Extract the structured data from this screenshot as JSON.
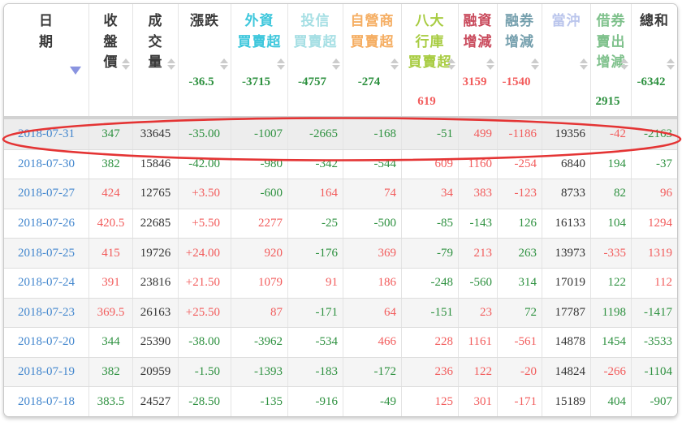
{
  "colors": {
    "red": "#f25c5c",
    "green": "#2e9140",
    "black": "#333333",
    "date_link": "#4387ce",
    "active_sort_arrow": "#8a94e0",
    "inactive_sort_arrow": "#cccccc",
    "annotation": "#e43434"
  },
  "annotation": {
    "type": "ellipse",
    "target_row": "2018-07-31"
  },
  "table": {
    "columns": [
      {
        "id": "date",
        "label_lines": [
          "日",
          "期"
        ],
        "label_color": "#3a3a3a",
        "sort": "active-desc",
        "summary": null
      },
      {
        "id": "close",
        "label_lines": [
          "收",
          "盤",
          "價"
        ],
        "label_color": "#3a3a3a",
        "sort": "neutral",
        "summary": null
      },
      {
        "id": "volume",
        "label_lines": [
          "成",
          "交",
          "量"
        ],
        "label_color": "#3a3a3a",
        "sort": "neutral",
        "summary": null
      },
      {
        "id": "change",
        "label_lines": [
          "漲跌"
        ],
        "label_color": "#3a3a3a",
        "sort": "neutral",
        "summary": {
          "value": "-36.5",
          "color": "green"
        }
      },
      {
        "id": "foreign",
        "label_lines": [
          "外資",
          "買賣超"
        ],
        "label_color": "#3ec7dc",
        "sort": "neutral",
        "summary": {
          "value": "-3715",
          "color": "green"
        }
      },
      {
        "id": "trust",
        "label_lines": [
          "投信",
          "買賣超"
        ],
        "label_color": "#a6dfe4",
        "sort": "neutral",
        "summary": {
          "value": "-4757",
          "color": "green"
        }
      },
      {
        "id": "dealer",
        "label_lines": [
          "自營商",
          "買賣超"
        ],
        "label_color": "#f5ae63",
        "sort": "neutral",
        "summary": {
          "value": "-274",
          "color": "green"
        }
      },
      {
        "id": "banks",
        "label_lines": [
          "八大",
          "行庫",
          "買賣超"
        ],
        "label_color": "#a8cc42",
        "sort": "neutral",
        "summary": {
          "value": "619",
          "color": "red"
        }
      },
      {
        "id": "margin",
        "label_lines": [
          "融資",
          "增減"
        ],
        "label_color": "#c94a5c",
        "sort": "neutral",
        "summary": {
          "value": "3159",
          "color": "red"
        }
      },
      {
        "id": "short",
        "label_lines": [
          "融券",
          "增減"
        ],
        "label_color": "#76a0ae",
        "sort": "neutral",
        "summary": {
          "value": "-1540",
          "color": "red"
        }
      },
      {
        "id": "daytrade",
        "label_lines": [
          "當沖"
        ],
        "label_color": "#bac5ec",
        "sort": "neutral",
        "summary": null
      },
      {
        "id": "seclend",
        "label_lines": [
          "借券",
          "賣出",
          "增減"
        ],
        "label_color": "#7fc18c",
        "sort": "neutral",
        "summary": {
          "value": "2915",
          "color": "green"
        }
      },
      {
        "id": "total",
        "label_lines": [
          "總和"
        ],
        "label_color": "#3a3a3a",
        "sort": "neutral",
        "summary": {
          "value": "-6342",
          "color": "green"
        }
      }
    ],
    "rows": [
      {
        "date": "2018-07-31",
        "highlighted": true,
        "cells": [
          {
            "v": "347",
            "c": "green"
          },
          {
            "v": "33645",
            "c": "black"
          },
          {
            "v": "-35.00",
            "c": "green"
          },
          {
            "v": "-1007",
            "c": "green"
          },
          {
            "v": "-2665",
            "c": "green"
          },
          {
            "v": "-168",
            "c": "green"
          },
          {
            "v": "-51",
            "c": "green"
          },
          {
            "v": "499",
            "c": "red"
          },
          {
            "v": "-1186",
            "c": "red"
          },
          {
            "v": "19356",
            "c": "black"
          },
          {
            "v": "-42",
            "c": "red"
          },
          {
            "v": "-2163",
            "c": "green"
          }
        ]
      },
      {
        "date": "2018-07-30",
        "highlighted": false,
        "cells": [
          {
            "v": "382",
            "c": "green"
          },
          {
            "v": "15846",
            "c": "black"
          },
          {
            "v": "-42.00",
            "c": "green"
          },
          {
            "v": "-980",
            "c": "green"
          },
          {
            "v": "-342",
            "c": "green"
          },
          {
            "v": "-544",
            "c": "green"
          },
          {
            "v": "609",
            "c": "red"
          },
          {
            "v": "1160",
            "c": "red"
          },
          {
            "v": "-254",
            "c": "red"
          },
          {
            "v": "6840",
            "c": "black"
          },
          {
            "v": "194",
            "c": "green"
          },
          {
            "v": "-37",
            "c": "green"
          }
        ]
      },
      {
        "date": "2018-07-27",
        "highlighted": false,
        "cells": [
          {
            "v": "424",
            "c": "red"
          },
          {
            "v": "12765",
            "c": "black"
          },
          {
            "v": "+3.50",
            "c": "red"
          },
          {
            "v": "-600",
            "c": "green"
          },
          {
            "v": "164",
            "c": "red"
          },
          {
            "v": "74",
            "c": "red"
          },
          {
            "v": "34",
            "c": "red"
          },
          {
            "v": "383",
            "c": "red"
          },
          {
            "v": "-123",
            "c": "red"
          },
          {
            "v": "8733",
            "c": "black"
          },
          {
            "v": "82",
            "c": "green"
          },
          {
            "v": "96",
            "c": "red"
          }
        ]
      },
      {
        "date": "2018-07-26",
        "highlighted": false,
        "cells": [
          {
            "v": "420.5",
            "c": "red"
          },
          {
            "v": "22685",
            "c": "black"
          },
          {
            "v": "+5.50",
            "c": "red"
          },
          {
            "v": "2277",
            "c": "red"
          },
          {
            "v": "-25",
            "c": "green"
          },
          {
            "v": "-500",
            "c": "green"
          },
          {
            "v": "-85",
            "c": "green"
          },
          {
            "v": "-143",
            "c": "green"
          },
          {
            "v": "126",
            "c": "green"
          },
          {
            "v": "16133",
            "c": "black"
          },
          {
            "v": "104",
            "c": "green"
          },
          {
            "v": "1294",
            "c": "red"
          }
        ]
      },
      {
        "date": "2018-07-25",
        "highlighted": false,
        "cells": [
          {
            "v": "415",
            "c": "red"
          },
          {
            "v": "19726",
            "c": "black"
          },
          {
            "v": "+24.00",
            "c": "red"
          },
          {
            "v": "920",
            "c": "red"
          },
          {
            "v": "-176",
            "c": "green"
          },
          {
            "v": "369",
            "c": "red"
          },
          {
            "v": "-79",
            "c": "green"
          },
          {
            "v": "213",
            "c": "red"
          },
          {
            "v": "263",
            "c": "green"
          },
          {
            "v": "13973",
            "c": "black"
          },
          {
            "v": "-335",
            "c": "red"
          },
          {
            "v": "1319",
            "c": "red"
          }
        ]
      },
      {
        "date": "2018-07-24",
        "highlighted": false,
        "cells": [
          {
            "v": "391",
            "c": "red"
          },
          {
            "v": "23816",
            "c": "black"
          },
          {
            "v": "+21.50",
            "c": "red"
          },
          {
            "v": "1079",
            "c": "red"
          },
          {
            "v": "91",
            "c": "red"
          },
          {
            "v": "186",
            "c": "red"
          },
          {
            "v": "-248",
            "c": "green"
          },
          {
            "v": "-560",
            "c": "green"
          },
          {
            "v": "314",
            "c": "green"
          },
          {
            "v": "17019",
            "c": "black"
          },
          {
            "v": "122",
            "c": "green"
          },
          {
            "v": "112",
            "c": "red"
          }
        ]
      },
      {
        "date": "2018-07-23",
        "highlighted": false,
        "cells": [
          {
            "v": "369.5",
            "c": "red"
          },
          {
            "v": "26163",
            "c": "black"
          },
          {
            "v": "+25.50",
            "c": "red"
          },
          {
            "v": "87",
            "c": "red"
          },
          {
            "v": "-171",
            "c": "green"
          },
          {
            "v": "64",
            "c": "red"
          },
          {
            "v": "-151",
            "c": "green"
          },
          {
            "v": "23",
            "c": "red"
          },
          {
            "v": "72",
            "c": "green"
          },
          {
            "v": "17787",
            "c": "black"
          },
          {
            "v": "1198",
            "c": "green"
          },
          {
            "v": "-1417",
            "c": "green"
          }
        ]
      },
      {
        "date": "2018-07-20",
        "highlighted": false,
        "cells": [
          {
            "v": "344",
            "c": "green"
          },
          {
            "v": "25390",
            "c": "black"
          },
          {
            "v": "-38.00",
            "c": "green"
          },
          {
            "v": "-3962",
            "c": "green"
          },
          {
            "v": "-534",
            "c": "green"
          },
          {
            "v": "466",
            "c": "red"
          },
          {
            "v": "228",
            "c": "red"
          },
          {
            "v": "1161",
            "c": "red"
          },
          {
            "v": "-561",
            "c": "red"
          },
          {
            "v": "14878",
            "c": "black"
          },
          {
            "v": "1454",
            "c": "green"
          },
          {
            "v": "-3533",
            "c": "green"
          }
        ]
      },
      {
        "date": "2018-07-19",
        "highlighted": false,
        "cells": [
          {
            "v": "382",
            "c": "green"
          },
          {
            "v": "20959",
            "c": "black"
          },
          {
            "v": "-1.50",
            "c": "green"
          },
          {
            "v": "-1393",
            "c": "green"
          },
          {
            "v": "-183",
            "c": "green"
          },
          {
            "v": "-172",
            "c": "green"
          },
          {
            "v": "236",
            "c": "red"
          },
          {
            "v": "122",
            "c": "red"
          },
          {
            "v": "-20",
            "c": "red"
          },
          {
            "v": "14824",
            "c": "black"
          },
          {
            "v": "-266",
            "c": "red"
          },
          {
            "v": "-1104",
            "c": "green"
          }
        ]
      },
      {
        "date": "2018-07-18",
        "highlighted": false,
        "cells": [
          {
            "v": "383.5",
            "c": "green"
          },
          {
            "v": "24527",
            "c": "black"
          },
          {
            "v": "-28.50",
            "c": "green"
          },
          {
            "v": "-135",
            "c": "green"
          },
          {
            "v": "-916",
            "c": "green"
          },
          {
            "v": "-49",
            "c": "green"
          },
          {
            "v": "125",
            "c": "red"
          },
          {
            "v": "301",
            "c": "red"
          },
          {
            "v": "-171",
            "c": "red"
          },
          {
            "v": "15189",
            "c": "black"
          },
          {
            "v": "404",
            "c": "green"
          },
          {
            "v": "-907",
            "c": "green"
          }
        ]
      }
    ]
  }
}
